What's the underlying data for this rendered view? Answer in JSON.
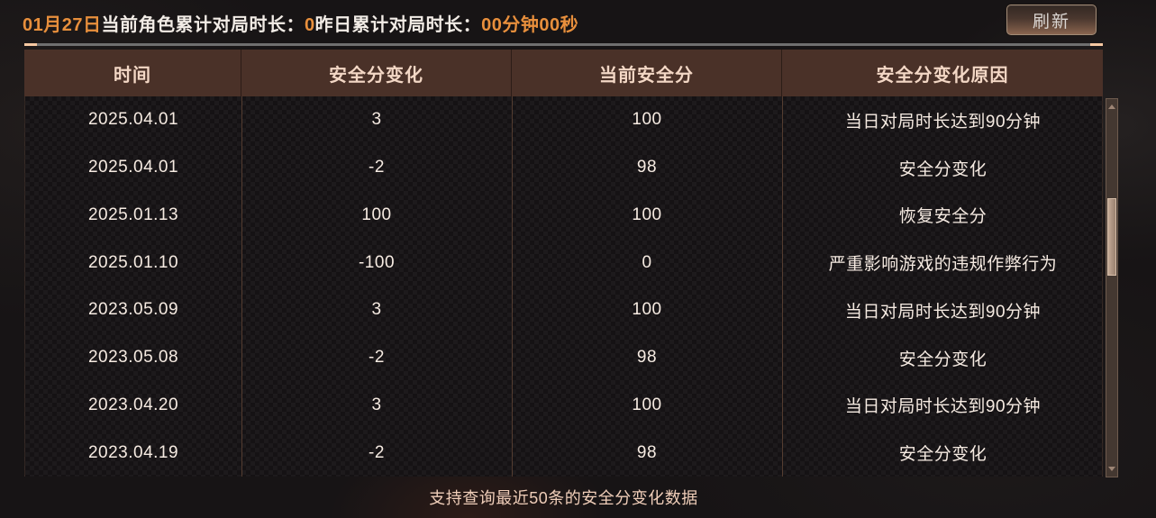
{
  "top_bar": {
    "date": "01月27日",
    "today_playtime_label": "当前角色累计对局时长：",
    "today_playtime_value": "0",
    "yesterday_playtime_label": "昨日累计对局时长：",
    "yesterday_playtime_value": "00分钟00秒",
    "refresh_button": "刷新"
  },
  "table": {
    "columns": [
      "时间",
      "安全分变化",
      "当前安全分",
      "安全分变化原因"
    ],
    "rows": [
      [
        "2025.04.01",
        "3",
        "100",
        "当日对局时长达到90分钟"
      ],
      [
        "2025.04.01",
        "-2",
        "98",
        "安全分变化"
      ],
      [
        "2025.01.13",
        "100",
        "100",
        "恢复安全分"
      ],
      [
        "2025.01.10",
        "-100",
        "0",
        "严重影响游戏的违规作弊行为"
      ],
      [
        "2023.05.09",
        "3",
        "100",
        "当日对局时长达到90分钟"
      ],
      [
        "2023.05.08",
        "-2",
        "98",
        "安全分变化"
      ],
      [
        "2023.04.20",
        "3",
        "100",
        "当日对局时长达到90分钟"
      ],
      [
        "2023.04.19",
        "-2",
        "98",
        "安全分变化"
      ]
    ]
  },
  "footer": {
    "note": "支持查询最近50条的安全分变化数据"
  },
  "colors": {
    "accent_orange": "#e88f3c",
    "header_bg": "#4a3128",
    "scroll_thumb": "#ab9280"
  }
}
